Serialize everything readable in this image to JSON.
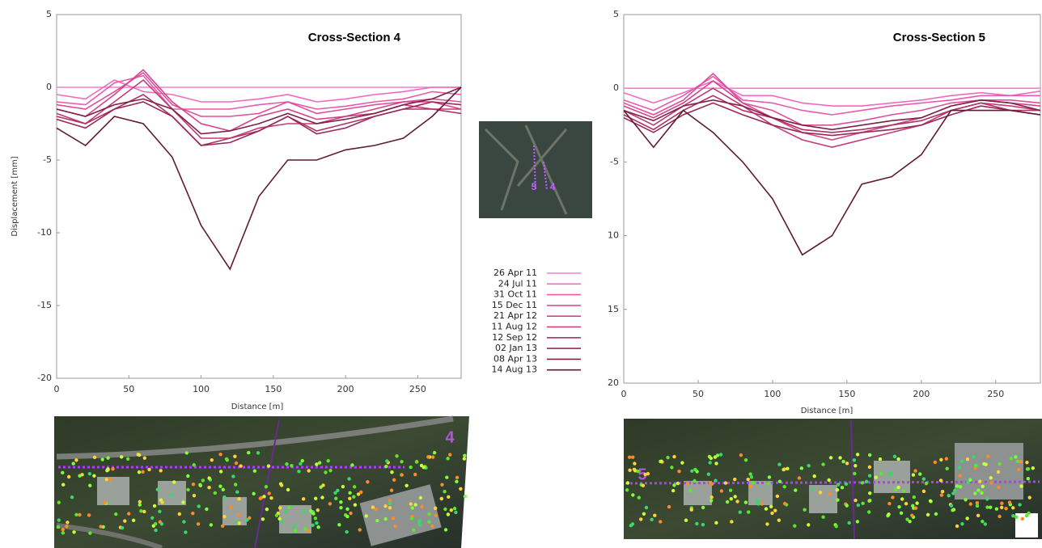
{
  "chart_data": [
    {
      "type": "line",
      "title": "Cross-Section 4",
      "x_label": "Distance [m]",
      "y_label": "Displacement [mm]",
      "x": [
        0,
        20,
        40,
        60,
        80,
        100,
        120,
        140,
        160,
        180,
        200,
        220,
        240,
        260,
        280
      ],
      "xlim": [
        0,
        280
      ],
      "xticks": [
        0,
        50,
        100,
        150,
        200,
        250
      ],
      "ylim": [
        -20,
        5
      ],
      "yticks": [
        5,
        0,
        -5,
        -10,
        -15,
        -20
      ],
      "series": [
        {
          "name": "26 Apr 11",
          "color": "#f77fd0",
          "values": [
            0,
            0,
            0,
            0,
            0,
            0,
            0,
            0,
            0,
            0,
            0,
            0,
            0,
            0,
            0
          ]
        },
        {
          "name": "24 Jul 11",
          "color": "#f06ac0",
          "values": [
            -0.5,
            -0.8,
            0.5,
            -0.3,
            -0.5,
            -1.0,
            -1.0,
            -0.8,
            -0.5,
            -1.0,
            -0.8,
            -0.5,
            -0.3,
            0.0,
            0.0
          ]
        },
        {
          "name": "31 Oct 11",
          "color": "#e85aae",
          "values": [
            -1.0,
            -1.2,
            0.3,
            0.8,
            -1.5,
            -1.5,
            -1.5,
            -1.2,
            -1.0,
            -1.5,
            -1.3,
            -1.0,
            -0.8,
            -0.3,
            -0.5
          ]
        },
        {
          "name": "15 Dec 11",
          "color": "#de4e9c",
          "values": [
            -1.2,
            -1.5,
            -0.3,
            1.0,
            -1.2,
            -2.0,
            -2.0,
            -1.8,
            -1.0,
            -1.8,
            -1.5,
            -1.2,
            -1.0,
            -0.8,
            -1.0
          ]
        },
        {
          "name": "21 Apr 12",
          "color": "#d4448a",
          "values": [
            -1.5,
            -2.0,
            -0.5,
            1.2,
            -1.0,
            -2.5,
            -3.0,
            -2.0,
            -1.5,
            -2.2,
            -2.0,
            -1.5,
            -1.0,
            -1.0,
            -1.5
          ]
        },
        {
          "name": "11 Aug 12",
          "color": "#c23a78",
          "values": [
            -1.8,
            -2.5,
            -1.0,
            0.5,
            -1.5,
            -3.5,
            -3.5,
            -2.8,
            -2.5,
            -2.5,
            -2.0,
            -1.8,
            -1.2,
            -1.5,
            -1.5
          ]
        },
        {
          "name": "12 Sep 12",
          "color": "#ad3266",
          "values": [
            -2.0,
            -2.5,
            -1.5,
            -0.5,
            -2.0,
            -4.0,
            -3.5,
            -3.0,
            -2.0,
            -3.0,
            -2.5,
            -2.0,
            -1.5,
            -1.5,
            -1.8
          ]
        },
        {
          "name": "02 Jan 13",
          "color": "#962a55",
          "values": [
            -2.2,
            -2.8,
            -1.5,
            -1.0,
            -2.0,
            -4.0,
            -3.8,
            -3.0,
            -2.0,
            -3.2,
            -2.8,
            -2.0,
            -1.5,
            -1.0,
            -1.2
          ]
        },
        {
          "name": "08 Apr 13",
          "color": "#7c2244",
          "values": [
            -1.5,
            -2.0,
            -1.2,
            -0.8,
            -1.5,
            -3.2,
            -3.0,
            -2.5,
            -1.8,
            -2.5,
            -2.2,
            -1.8,
            -1.2,
            -0.8,
            0.0
          ]
        },
        {
          "name": "14 Aug 13",
          "color": "#611a33",
          "values": [
            -2.8,
            -4.0,
            -2.0,
            -2.5,
            -4.8,
            -9.5,
            -12.5,
            -7.5,
            -5.0,
            -5.0,
            -4.3,
            -4.0,
            -3.5,
            -2.0,
            0.0
          ]
        }
      ]
    },
    {
      "type": "line",
      "title": "Cross-Section 5",
      "x_label": "Distance [m]",
      "x": [
        0,
        20,
        40,
        60,
        80,
        100,
        120,
        140,
        160,
        180,
        200,
        220,
        240,
        260,
        280
      ],
      "xlim": [
        0,
        280
      ],
      "xticks": [
        0,
        50,
        100,
        150,
        200,
        250
      ],
      "ylim": [
        -20,
        5
      ],
      "yticks": [
        5,
        0,
        -5,
        {
          "value": -10,
          "label": "10"
        },
        {
          "value": -15,
          "label": "15"
        },
        {
          "value": -20,
          "label": "20"
        }
      ],
      "series": [
        {
          "color": "#f77fd0",
          "values": [
            0,
            0,
            0,
            0,
            0,
            0,
            0,
            0,
            0,
            0,
            0,
            0,
            0,
            0,
            0
          ]
        },
        {
          "color": "#f06ac0",
          "values": [
            -0.3,
            -1.0,
            -0.3,
            0.5,
            -0.5,
            -0.5,
            -1.0,
            -1.2,
            -1.2,
            -1.0,
            -0.8,
            -0.5,
            -0.3,
            -0.5,
            -0.2
          ]
        },
        {
          "color": "#e85aae",
          "values": [
            -0.8,
            -1.5,
            -0.5,
            0.8,
            -0.8,
            -1.0,
            -1.5,
            -1.8,
            -1.5,
            -1.2,
            -1.0,
            -0.8,
            -0.5,
            -0.5,
            -0.5
          ]
        },
        {
          "color": "#de4e9c",
          "values": [
            -1.0,
            -1.8,
            -0.8,
            1.0,
            -1.0,
            -1.5,
            -2.5,
            -2.5,
            -2.2,
            -1.8,
            -1.5,
            -1.0,
            -0.8,
            -0.8,
            -1.0
          ]
        },
        {
          "color": "#d4448a",
          "values": [
            -1.2,
            -2.0,
            -1.0,
            0.5,
            -1.0,
            -2.0,
            -3.0,
            -3.5,
            -3.0,
            -2.5,
            -2.0,
            -1.2,
            -0.8,
            -1.0,
            -1.2
          ]
        },
        {
          "color": "#c23a78",
          "values": [
            -1.5,
            -2.5,
            -1.2,
            0.0,
            -1.2,
            -2.5,
            -3.5,
            -4.0,
            -3.5,
            -3.0,
            -2.5,
            -1.5,
            -1.0,
            -1.2,
            -1.5
          ]
        },
        {
          "color": "#ad3266",
          "values": [
            -1.8,
            -2.8,
            -1.5,
            -0.5,
            -1.5,
            -2.0,
            -2.8,
            -3.0,
            -2.8,
            -2.5,
            -2.2,
            -1.5,
            -1.0,
            -1.5,
            -1.5
          ]
        },
        {
          "color": "#962a55",
          "values": [
            -2.0,
            -3.0,
            -1.8,
            -1.0,
            -1.8,
            -2.5,
            -3.0,
            -3.2,
            -3.0,
            -2.8,
            -2.5,
            -1.8,
            -1.2,
            -1.5,
            -1.8
          ]
        },
        {
          "color": "#7c2244",
          "values": [
            -1.5,
            -2.2,
            -1.2,
            -0.8,
            -1.2,
            -2.0,
            -2.5,
            -2.8,
            -2.5,
            -2.2,
            -2.0,
            -1.2,
            -0.8,
            -1.0,
            -1.5
          ]
        },
        {
          "color": "#611a33",
          "values": [
            -1.5,
            -4.0,
            -1.5,
            -3.0,
            -5.0,
            -7.5,
            -11.3,
            -10.0,
            -6.5,
            -6.0,
            -4.5,
            -1.5,
            -1.5,
            -1.5,
            -1.8
          ]
        }
      ]
    }
  ],
  "images": {
    "map_labels": [
      "5",
      "4"
    ],
    "photo_left_label": "4",
    "photo_right_label": "5"
  }
}
